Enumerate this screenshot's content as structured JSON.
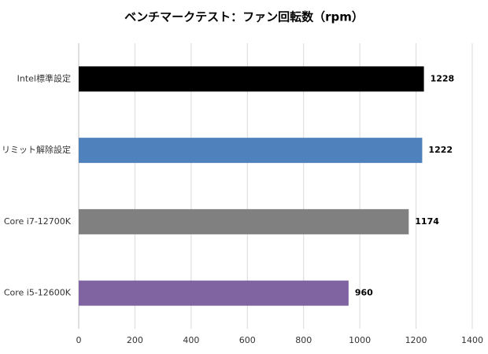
{
  "chart_data": {
    "type": "bar",
    "orientation": "horizontal",
    "title": "ベンチマークテスト：ファン回転数（rpm）",
    "categories": [
      "Intel標準設定",
      "リミット解除設定",
      "Core i7-12700K",
      "Core i5-12600K"
    ],
    "values": [
      1228,
      1222,
      1174,
      960
    ],
    "colors": [
      "#000000",
      "#4f81bd",
      "#808080",
      "#8064a2"
    ],
    "xlim": [
      0,
      1400
    ],
    "xticks": [
      0,
      200,
      400,
      600,
      800,
      1000,
      1200,
      1400
    ],
    "grid": true,
    "data_labels": true
  }
}
